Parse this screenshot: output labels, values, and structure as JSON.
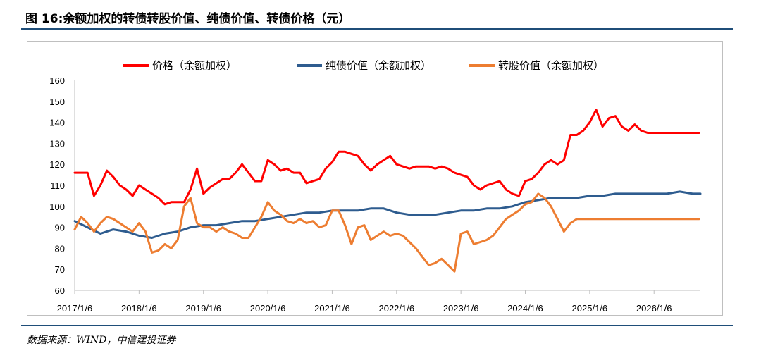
{
  "title": "图 16:余额加权的转债转股价值、纯债价值、转债价格（元）",
  "source": "数据来源：WIND，中信建投证券",
  "chart_data": {
    "type": "line",
    "title": "图 16:余额加权的转债转股价值、纯债价值、转债价格（元）",
    "xlabel": "",
    "ylabel": "",
    "ylim": [
      60,
      160
    ],
    "yticks": [
      60,
      70,
      80,
      90,
      100,
      110,
      120,
      130,
      140,
      150,
      160
    ],
    "x_tick_labels": [
      "2017/1/6",
      "2018/1/6",
      "2019/1/6",
      "2020/1/6",
      "2021/1/6",
      "2022/1/6",
      "2023/1/6",
      "2024/1/6",
      "2025/1/6",
      "2026/1/6"
    ],
    "xlim": [
      2017.0,
      2026.72
    ],
    "grid": false,
    "legend_position": "top",
    "series": [
      {
        "name": "价格（余额加权）",
        "color": "#ff0000",
        "x": [
          2017.0,
          2017.1,
          2017.2,
          2017.3,
          2017.4,
          2017.5,
          2017.6,
          2017.7,
          2017.8,
          2017.9,
          2018.0,
          2018.1,
          2018.2,
          2018.3,
          2018.4,
          2018.5,
          2018.6,
          2018.7,
          2018.8,
          2018.9,
          2019.0,
          2019.1,
          2019.2,
          2019.3,
          2019.4,
          2019.5,
          2019.6,
          2019.7,
          2019.8,
          2019.9,
          2020.0,
          2020.1,
          2020.2,
          2020.3,
          2020.4,
          2020.5,
          2020.6,
          2020.7,
          2020.8,
          2020.9,
          2021.0,
          2021.1,
          2021.2,
          2021.3,
          2021.4,
          2021.5,
          2021.6,
          2021.7,
          2021.8,
          2021.9,
          2022.0,
          2022.1,
          2022.2,
          2022.3,
          2022.4,
          2022.5,
          2022.6,
          2022.7,
          2022.8,
          2022.9,
          2023.0,
          2023.1,
          2023.2,
          2023.3,
          2023.4,
          2023.5,
          2023.6,
          2023.7,
          2023.8,
          2023.9,
          2024.0,
          2024.1,
          2024.2,
          2024.3,
          2024.4,
          2024.5,
          2024.6,
          2024.7,
          2024.8,
          2024.9,
          2025.0,
          2025.1,
          2025.2,
          2025.3,
          2025.4,
          2025.5,
          2025.6,
          2025.7,
          2025.8,
          2025.9,
          2026.0,
          2026.1,
          2026.2,
          2026.3,
          2026.4,
          2026.5,
          2026.6,
          2026.7
        ],
        "values": [
          116,
          116,
          116,
          105,
          110,
          117,
          114,
          110,
          108,
          105,
          110,
          108,
          106,
          104,
          101,
          102,
          102,
          102,
          108,
          118,
          106,
          109,
          111,
          113,
          113,
          116,
          120,
          116,
          112,
          112,
          122,
          120,
          117,
          118,
          116,
          116,
          111,
          112,
          113,
          118,
          121,
          126,
          126,
          125,
          124,
          120,
          117,
          120,
          122,
          124,
          120,
          119,
          118,
          119,
          119,
          119,
          118,
          119,
          118,
          116,
          115,
          114,
          110,
          108,
          110,
          111,
          112,
          108,
          106,
          105,
          112,
          113,
          116,
          120,
          122,
          120,
          122,
          134,
          134,
          136,
          140,
          146,
          138,
          142,
          143,
          138,
          136,
          139,
          136,
          135,
          135,
          135,
          135,
          135,
          135,
          135,
          135,
          135
        ]
      },
      {
        "name": "纯债价值（余额加权）",
        "color": "#2e5c8f",
        "x": [
          2017.0,
          2017.2,
          2017.4,
          2017.6,
          2017.8,
          2018.0,
          2018.2,
          2018.4,
          2018.6,
          2018.8,
          2019.0,
          2019.2,
          2019.4,
          2019.6,
          2019.8,
          2020.0,
          2020.2,
          2020.4,
          2020.6,
          2020.8,
          2021.0,
          2021.2,
          2021.4,
          2021.6,
          2021.8,
          2022.0,
          2022.2,
          2022.4,
          2022.6,
          2022.8,
          2023.0,
          2023.2,
          2023.4,
          2023.6,
          2023.8,
          2024.0,
          2024.2,
          2024.4,
          2024.6,
          2024.8,
          2025.0,
          2025.2,
          2025.4,
          2025.6,
          2025.8,
          2026.0,
          2026.2,
          2026.4,
          2026.6,
          2026.72
        ],
        "values": [
          93,
          90,
          87,
          89,
          88,
          86,
          85,
          87,
          88,
          90,
          91,
          91,
          92,
          93,
          93,
          94,
          95,
          96,
          97,
          97,
          98,
          98,
          98,
          99,
          99,
          97,
          96,
          96,
          96,
          97,
          98,
          98,
          99,
          99,
          100,
          102,
          103,
          104,
          104,
          104,
          105,
          105,
          106,
          106,
          106,
          106,
          106,
          107,
          106,
          106
        ]
      },
      {
        "name": "转股价值（余额加权）",
        "color": "#ed7d31",
        "x": [
          2017.0,
          2017.1,
          2017.2,
          2017.3,
          2017.4,
          2017.5,
          2017.6,
          2017.7,
          2017.8,
          2017.9,
          2018.0,
          2018.1,
          2018.2,
          2018.3,
          2018.4,
          2018.5,
          2018.6,
          2018.7,
          2018.8,
          2018.9,
          2019.0,
          2019.1,
          2019.2,
          2019.3,
          2019.4,
          2019.5,
          2019.6,
          2019.7,
          2019.8,
          2019.9,
          2020.0,
          2020.1,
          2020.2,
          2020.3,
          2020.4,
          2020.5,
          2020.6,
          2020.7,
          2020.8,
          2020.9,
          2021.0,
          2021.1,
          2021.2,
          2021.3,
          2021.4,
          2021.5,
          2021.6,
          2021.7,
          2021.8,
          2021.9,
          2022.0,
          2022.1,
          2022.2,
          2022.3,
          2022.4,
          2022.5,
          2022.6,
          2022.7,
          2022.8,
          2022.9,
          2023.0,
          2023.1,
          2023.2,
          2023.3,
          2023.4,
          2023.5,
          2023.6,
          2023.7,
          2023.8,
          2023.9,
          2024.0,
          2024.1,
          2024.2,
          2024.3,
          2024.4,
          2024.5,
          2024.6,
          2024.7,
          2024.8,
          2024.9,
          2025.0,
          2025.1,
          2025.2,
          2025.3,
          2025.4,
          2025.5,
          2025.6,
          2025.7,
          2025.8,
          2025.9,
          2026.0,
          2026.1,
          2026.2,
          2026.3,
          2026.4,
          2026.5,
          2026.6,
          2026.7
        ],
        "values": [
          89,
          95,
          92,
          88,
          92,
          95,
          94,
          92,
          90,
          88,
          92,
          88,
          78,
          79,
          82,
          80,
          84,
          100,
          104,
          92,
          90,
          90,
          88,
          90,
          88,
          87,
          85,
          85,
          90,
          95,
          102,
          98,
          96,
          93,
          92,
          94,
          92,
          93,
          90,
          91,
          98,
          98,
          91,
          82,
          90,
          91,
          84,
          86,
          88,
          86,
          87,
          86,
          83,
          80,
          76,
          72,
          73,
          75,
          72,
          69,
          87,
          88,
          82,
          83,
          84,
          86,
          90,
          94,
          96,
          98,
          101,
          102,
          106,
          104,
          100,
          94,
          88,
          92,
          94,
          94,
          94,
          94,
          94,
          94,
          94,
          94,
          94,
          94,
          94,
          94,
          94,
          94,
          94,
          94,
          94,
          94,
          94,
          94
        ]
      }
    ]
  }
}
